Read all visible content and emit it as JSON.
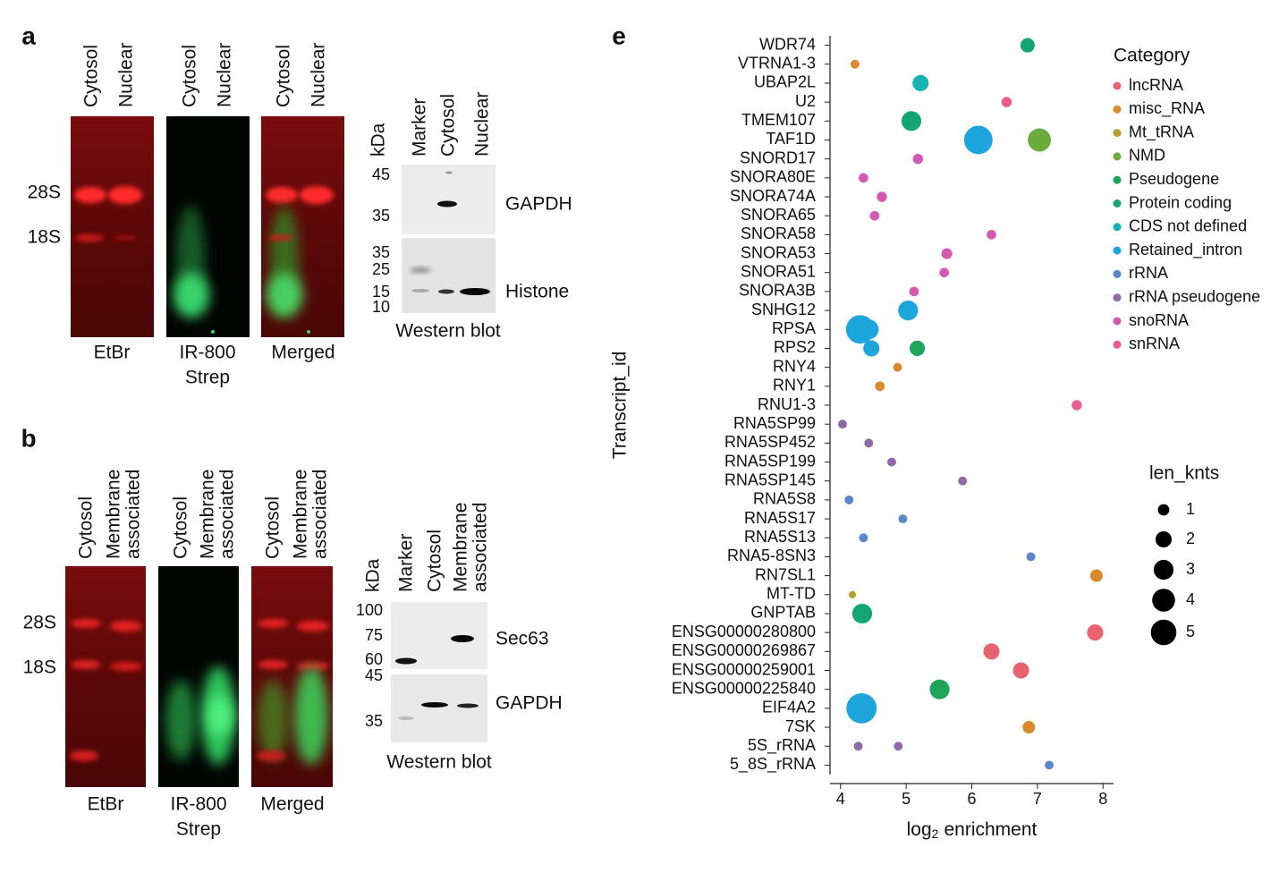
{
  "panel_a": {
    "label": "a",
    "gels": [
      {
        "lanes": [
          [
            "Cytosol"
          ],
          [
            "Nuclear"
          ]
        ],
        "caption": [
          "EtBr"
        ]
      },
      {
        "lanes": [
          [
            "Cytosol"
          ],
          [
            "Nuclear"
          ]
        ],
        "caption": [
          "IR-800",
          "Strep"
        ]
      },
      {
        "lanes": [
          [
            "Cytosol"
          ],
          [
            "Nuclear"
          ]
        ],
        "caption": [
          "Merged"
        ]
      }
    ],
    "bands": [
      "28S",
      "18S"
    ],
    "western_blot": {
      "unit": "kDa",
      "lanes": [
        [
          "Marker"
        ],
        [
          "Cytosol"
        ],
        [
          "Nuclear"
        ]
      ],
      "blots": [
        {
          "protein": "GAPDH",
          "markers": [
            45,
            35
          ]
        },
        {
          "protein": "Histone",
          "markers": [
            35,
            25,
            15,
            10
          ]
        }
      ],
      "caption": "Western blot"
    }
  },
  "panel_b": {
    "label": "b",
    "gels": [
      {
        "lanes": [
          [
            "Cytosol"
          ],
          [
            "Membrane",
            "associated"
          ]
        ],
        "caption": [
          "EtBr"
        ]
      },
      {
        "lanes": [
          [
            "Cytosol"
          ],
          [
            "Membrane",
            "associated"
          ]
        ],
        "caption": [
          "IR-800",
          "Strep"
        ]
      },
      {
        "lanes": [
          [
            "Cytosol"
          ],
          [
            "Membrane",
            "associated"
          ]
        ],
        "caption": [
          "Merged"
        ]
      }
    ],
    "bands": [
      "28S",
      "18S"
    ],
    "western_blot": {
      "unit": "kDa",
      "lanes": [
        [
          "Marker"
        ],
        [
          "Cytosol"
        ],
        [
          "Membrane",
          "associated"
        ]
      ],
      "blots": [
        {
          "protein": "Sec63",
          "markers": [
            100,
            75,
            60
          ]
        },
        {
          "protein": "GAPDH",
          "markers": [
            45,
            35
          ]
        }
      ],
      "caption": "Western blot"
    }
  },
  "chart_data": {
    "type": "bubble",
    "panel": "e",
    "xlabel": [
      "log",
      "2",
      "enrichment"
    ],
    "ylabel": "Transcript_id",
    "legend_title": "Category",
    "categories": [
      "WDR74",
      "VTRNA1-3",
      "UBAP2L",
      "U2",
      "TMEM107",
      "TAF1D",
      "SNORD17",
      "SNORA80E",
      "SNORA74A",
      "SNORA65",
      "SNORA58",
      "SNORA53",
      "SNORA51",
      "SNORA3B",
      "SNHG12",
      "RPSA",
      "RPS2",
      "RNY4",
      "RNY1",
      "RNU1-3",
      "RNA5SP99",
      "RNA5SP452",
      "RNA5SP199",
      "RNA5SP145",
      "RNA5S8",
      "RNA5S17",
      "RNA5S13",
      "RNA5-8SN3",
      "RN7SL1",
      "MT-TD",
      "GNPTAB",
      "ENSG00000280800",
      "ENSG00000269867",
      "ENSG00000259001",
      "ENSG00000225840",
      "EIF4A2",
      "7SK",
      "5S_rRNA",
      "5_8S_rRNA"
    ],
    "xlim": [
      3.84,
      8.16
    ],
    "xticks": [
      4,
      5,
      6,
      7,
      8
    ],
    "series": [
      {
        "name": "lncRNA",
        "color": "#e8636f",
        "y": [
          "ENSG00000280800",
          "ENSG00000269867",
          "ENSG00000259001"
        ],
        "values": [
          7.88,
          6.3,
          6.75
        ],
        "sizes": [
          2,
          2,
          2
        ]
      },
      {
        "name": "misc_RNA",
        "color": "#d98a2e",
        "y": [
          "VTRNA1-3",
          "RNY4",
          "RNY1",
          "RN7SL1",
          "7SK"
        ],
        "values": [
          4.22,
          4.87,
          4.6,
          7.9,
          6.87
        ],
        "sizes": [
          0.6,
          0.6,
          0.7,
          1.2,
          1.2
        ]
      },
      {
        "name": "Mt_tRNA",
        "color": "#b3a02a",
        "y": [
          "MT-TD"
        ],
        "values": [
          4.18
        ],
        "sizes": [
          0.4
        ]
      },
      {
        "name": "NMD",
        "color": "#6aad3d",
        "y": [
          "TAF1D"
        ],
        "values": [
          7.03
        ],
        "sizes": [
          4.1
        ]
      },
      {
        "name": "Pseudogene",
        "color": "#1fa55a",
        "y": [
          "RPS2",
          "ENSG00000225840"
        ],
        "values": [
          5.17,
          5.51
        ],
        "sizes": [
          1.8,
          3
        ]
      },
      {
        "name": "Protein coding",
        "color": "#14a670",
        "y": [
          "WDR74",
          "TMEM107",
          "GNPTAB"
        ],
        "values": [
          6.85,
          5.08,
          4.33
        ],
        "sizes": [
          1.6,
          3,
          3
        ]
      },
      {
        "name": "CDS not defined",
        "color": "#16b3b6",
        "y": [
          "UBAP2L"
        ],
        "values": [
          5.22
        ],
        "sizes": [
          2
        ]
      },
      {
        "name": "Retained_intron",
        "color": "#1ca6dc",
        "y": [
          "TAF1D",
          "SNHG12",
          "RPSA",
          "RPSA",
          "RPS2",
          "EIF4A2"
        ],
        "values": [
          6.1,
          5.03,
          4.3,
          4.43,
          4.47,
          4.32
        ],
        "sizes": [
          6.2,
          3,
          6.2,
          3,
          2,
          7
        ]
      },
      {
        "name": "rRNA",
        "color": "#5b87c9",
        "y": [
          "RNA5S8",
          "RNA5S17",
          "RNA5S13",
          "RNA5-8SN3",
          "5_8S_rRNA"
        ],
        "values": [
          4.13,
          4.95,
          4.35,
          6.9,
          7.18
        ],
        "sizes": [
          0.6,
          0.6,
          0.6,
          0.6,
          0.6
        ]
      },
      {
        "name": "rRNA pseudogene",
        "color": "#8e6ba8",
        "y": [
          "RNA5SP99",
          "RNA5SP452",
          "RNA5SP199",
          "RNA5SP145",
          "5S_rRNA",
          "5S_rRNA"
        ],
        "values": [
          4.03,
          4.43,
          4.78,
          5.86,
          4.27,
          4.88
        ],
        "sizes": [
          0.6,
          0.6,
          0.6,
          0.6,
          0.6,
          0.6
        ]
      },
      {
        "name": "snoRNA",
        "color": "#d35ab2",
        "y": [
          "SNORD17",
          "SNORA80E",
          "SNORA74A",
          "SNORA65",
          "SNORA58",
          "SNORA53",
          "SNORA51",
          "SNORA3B"
        ],
        "values": [
          5.18,
          4.35,
          4.63,
          4.52,
          6.3,
          5.62,
          5.58,
          5.12
        ],
        "sizes": [
          0.8,
          0.7,
          0.8,
          0.7,
          0.7,
          0.9,
          0.7,
          0.7
        ]
      },
      {
        "name": "snRNA",
        "color": "#e95c8f",
        "y": [
          "U2",
          "RNU1-3"
        ],
        "values": [
          6.53,
          7.6
        ],
        "sizes": [
          0.8,
          0.8
        ]
      }
    ],
    "size_legend": {
      "title": "len_knts",
      "values": [
        1,
        2,
        3,
        4,
        5
      ]
    }
  }
}
